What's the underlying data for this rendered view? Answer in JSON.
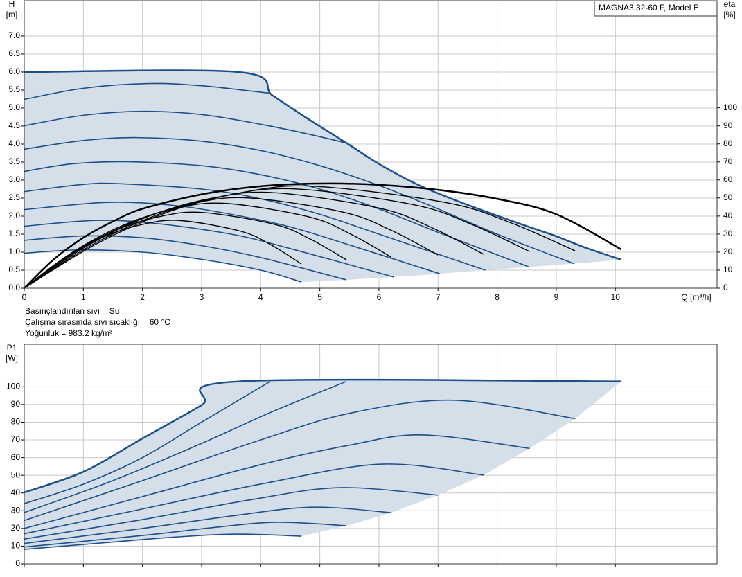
{
  "chart_data": [
    {
      "type": "line",
      "title": "MAGNA3 32-60 F, Model E",
      "y_label": "H",
      "y_unit": "[m]",
      "y2_label": "eta",
      "y2_unit": "[%]",
      "x_label": "Q [m³/h]",
      "notes": [
        "Basınçlandırılan sıvı = Su",
        "Çalışma sırasında sıvı sıcaklığı = 60 °C",
        "Yoğunluk = 983.2 kg/m³"
      ],
      "xlim": [
        0,
        11.72
      ],
      "xticks": [
        0,
        1,
        2,
        3,
        4,
        5,
        6,
        7,
        8,
        9,
        10
      ],
      "ylim": [
        0,
        7.98
      ],
      "yticks": [
        {
          "value": 0,
          "label": "0.0"
        },
        {
          "value": 0.5,
          "label": "0.5"
        },
        {
          "value": 1,
          "label": "1.0"
        },
        {
          "value": 1.5,
          "label": "1.5"
        },
        {
          "value": 2,
          "label": "2.0"
        },
        {
          "value": 2.5,
          "label": "2.5"
        },
        {
          "value": 3,
          "label": "3.0"
        },
        {
          "value": 3.5,
          "label": "3.5"
        },
        {
          "value": 4,
          "label": "4.0"
        },
        {
          "value": 4.5,
          "label": "4.5"
        },
        {
          "value": 5,
          "label": "5.0"
        },
        {
          "value": 5.5,
          "label": "5.5"
        },
        {
          "value": 6,
          "label": "6.0"
        },
        {
          "value": 6.5,
          "label": "6.5"
        },
        {
          "value": 7,
          "label": "7.0"
        }
      ],
      "y2lim": [
        0,
        159.4
      ],
      "y2ticks": [
        0,
        10,
        20,
        30,
        40,
        50,
        60,
        70,
        80,
        90,
        100
      ],
      "show_xtick_labels": true,
      "grid": true,
      "area_color": "#d5dfe9",
      "area_boundary": {
        "x": [
          10.1,
          9.3,
          8.54,
          7.8,
          7.03,
          6.25,
          5.45,
          4.69
        ],
        "values": [
          0.79,
          0.68,
          0.59,
          0.5,
          0.4,
          0.31,
          0.23,
          0.17
        ]
      },
      "series": [
        {
          "color": "#1b4f8a",
          "width": 2.5,
          "x": [
            0,
            3.63,
            4.2,
            4.8,
            5.45,
            6,
            6.62,
            7.2,
            7.8,
            8.4,
            8.97,
            9.5,
            10.1
          ],
          "values": [
            6,
            6,
            5.35,
            4.7,
            4.03,
            3.45,
            2.9,
            2.5,
            2.13,
            1.78,
            1.46,
            1.12,
            0.79
          ]
        },
        {
          "color": "#1b4f8a",
          "width": 1.6,
          "x": [
            0,
            1,
            2.1,
            3,
            4.16
          ],
          "values": [
            5.24,
            5.55,
            5.68,
            5.62,
            5.41
          ]
        },
        {
          "color": "#1b4f8a",
          "width": 1.6,
          "x": [
            0,
            1,
            2,
            3,
            4,
            4.8,
            5.45
          ],
          "values": [
            4.51,
            4.8,
            4.91,
            4.82,
            4.55,
            4.28,
            4.03
          ]
        },
        {
          "color": "#1b4f8a",
          "width": 1.6,
          "x": [
            0,
            1,
            1.9,
            3,
            4,
            5,
            6,
            7,
            8,
            9.3
          ],
          "values": [
            3.86,
            4.1,
            4.18,
            4.08,
            3.82,
            3.4,
            2.85,
            2.2,
            1.5,
            0.68
          ]
        },
        {
          "color": "#1b4f8a",
          "width": 1.6,
          "x": [
            0,
            0.8,
            1.7,
            3,
            4,
            5,
            6,
            7,
            8.54
          ],
          "values": [
            3.24,
            3.45,
            3.51,
            3.4,
            3.15,
            2.75,
            2.2,
            1.55,
            0.59
          ]
        },
        {
          "color": "#1b4f8a",
          "width": 1.6,
          "x": [
            0,
            1,
            1.6,
            3,
            4,
            5,
            6,
            7.8
          ],
          "values": [
            2.68,
            2.88,
            2.9,
            2.75,
            2.48,
            2.05,
            1.5,
            0.5
          ]
        },
        {
          "color": "#1b4f8a",
          "width": 1.6,
          "x": [
            0,
            1.4,
            2.5,
            3.5,
            4.5,
            5.5,
            7.03
          ],
          "values": [
            2.18,
            2.38,
            2.3,
            2.05,
            1.7,
            1.2,
            0.4
          ]
        },
        {
          "color": "#1b4f8a",
          "width": 1.6,
          "x": [
            0,
            1.2,
            2.2,
            3.5,
            4.5,
            6.25
          ],
          "values": [
            1.72,
            1.88,
            1.8,
            1.5,
            1.1,
            0.31
          ]
        },
        {
          "color": "#1b4f8a",
          "width": 1.6,
          "x": [
            0,
            1,
            2,
            3,
            4,
            5.45
          ],
          "values": [
            1.33,
            1.45,
            1.4,
            1.18,
            0.85,
            0.23
          ]
        },
        {
          "color": "#1b4f8a",
          "width": 1.6,
          "x": [
            0,
            0.9,
            2,
            3,
            4,
            4.69
          ],
          "values": [
            0.97,
            1.06,
            1,
            0.8,
            0.5,
            0.17
          ]
        },
        {
          "axis": "y2",
          "color": "#000000",
          "width": 2.5,
          "x": [
            0,
            0.5,
            1,
            1.5,
            2,
            3,
            4,
            5,
            6,
            7,
            8,
            9,
            10.1
          ],
          "values": [
            0,
            16,
            28,
            37,
            44,
            52,
            56.5,
            58,
            57.3,
            54.5,
            49.5,
            41,
            21.5
          ]
        },
        {
          "axis": "y2",
          "color": "#000000",
          "width": 1.4,
          "x": [
            0,
            1.23,
            2.45,
            3.68,
            4.9,
            7.11,
            8.22,
            9.32
          ],
          "values": [
            0,
            24.7,
            42.4,
            53,
            56.5,
            47.6,
            36.4,
            20.7
          ]
        },
        {
          "axis": "y2",
          "color": "#000000",
          "width": 1.4,
          "x": [
            0,
            1.15,
            2.3,
            3.45,
            4.6,
            6.58,
            7.56,
            8.55
          ],
          "values": [
            0,
            24.1,
            41.3,
            51.6,
            55,
            46.3,
            35.5,
            20.3
          ]
        },
        {
          "axis": "y2",
          "color": "#000000",
          "width": 1.4,
          "x": [
            0,
            1.05,
            2.1,
            3.15,
            4.2,
            5.99,
            6.88,
            7.77
          ],
          "values": [
            0,
            23.2,
            39.8,
            49.7,
            53,
            44.5,
            33.8,
            18.8
          ]
        },
        {
          "axis": "y2",
          "color": "#000000",
          "width": 1.4,
          "x": [
            0,
            0.95,
            1.9,
            2.85,
            3.8,
            5.4,
            6.2,
            7
          ],
          "values": [
            0,
            21.9,
            37.5,
            46.9,
            50,
            42.1,
            32.2,
            18.4
          ]
        },
        {
          "axis": "y2",
          "color": "#000000",
          "width": 1.4,
          "x": [
            0,
            0.85,
            1.7,
            2.55,
            3.4,
            4.81,
            5.51,
            6.21
          ],
          "values": [
            0,
            20.6,
            35.3,
            44.1,
            47,
            39.6,
            30.2,
            17.2
          ]
        },
        {
          "axis": "y2",
          "color": "#000000",
          "width": 1.4,
          "x": [
            0,
            0.75,
            1.5,
            2.25,
            3,
            4.23,
            4.84,
            5.45
          ],
          "values": [
            0,
            18.4,
            31.5,
            39.4,
            42,
            35.4,
            27.2,
            15.7
          ]
        },
        {
          "axis": "y2",
          "color": "#000000",
          "width": 1.4,
          "x": [
            0,
            0.66,
            1.32,
            1.98,
            2.64,
            3.67,
            4.18,
            4.69
          ],
          "values": [
            0,
            16.4,
            28.1,
            35.2,
            37.5,
            31.5,
            23.9,
            13.4
          ]
        }
      ]
    },
    {
      "type": "line",
      "y_label": "P1",
      "y_unit": "[W]",
      "xlim": [
        0,
        11.72
      ],
      "xticks": [
        0,
        1,
        2,
        3,
        4,
        5,
        6,
        7,
        8,
        9,
        10
      ],
      "ylim": [
        0,
        124
      ],
      "yticks": [
        0,
        10,
        20,
        30,
        40,
        50,
        60,
        70,
        80,
        90,
        100
      ],
      "show_xtick_labels": false,
      "grid": true,
      "area_color": "#d5dfe9",
      "area_boundary": {
        "x": [
          10.1,
          9.32,
          8.55,
          7.77,
          7,
          6.21,
          5.45,
          4.69
        ],
        "values": [
          103,
          82,
          65.2,
          50.1,
          38.8,
          28.9,
          21.5,
          15.6
        ]
      },
      "series": [
        {
          "color": "#1b4f8a",
          "width": 2.5,
          "x": [
            0,
            1,
            2,
            3,
            3.63,
            10.1
          ],
          "values": [
            40.3,
            52,
            70.8,
            89.6,
            103,
            103
          ]
        },
        {
          "color": "#1b4f8a",
          "width": 1.6,
          "x": [
            0,
            1,
            2,
            3,
            4.16
          ],
          "values": [
            34,
            45,
            60,
            80,
            103
          ]
        },
        {
          "color": "#1b4f8a",
          "width": 1.6,
          "x": [
            0,
            1.5,
            3,
            4.2,
            5.45
          ],
          "values": [
            29,
            47,
            68,
            86,
            103
          ]
        },
        {
          "color": "#1b4f8a",
          "width": 1.6,
          "x": [
            0,
            2,
            4,
            5.5,
            7.27,
            9.32
          ],
          "values": [
            24.5,
            47,
            70,
            85,
            92.4,
            82
          ]
        },
        {
          "color": "#1b4f8a",
          "width": 1.6,
          "x": [
            0,
            2,
            4,
            5.5,
            6.74,
            8.55
          ],
          "values": [
            20,
            38,
            56,
            67,
            72.8,
            65.2
          ]
        },
        {
          "color": "#1b4f8a",
          "width": 1.6,
          "x": [
            0,
            2,
            4,
            6.04,
            7.77
          ],
          "values": [
            17,
            31,
            45,
            56.3,
            50.1
          ]
        },
        {
          "color": "#1b4f8a",
          "width": 1.6,
          "x": [
            0,
            2,
            3.8,
            5.33,
            7
          ],
          "values": [
            14,
            25,
            36,
            43,
            38.8
          ]
        },
        {
          "color": "#1b4f8a",
          "width": 1.6,
          "x": [
            0,
            2,
            3.5,
            4.87,
            6.21
          ],
          "values": [
            11.5,
            20,
            27,
            32,
            28.9
          ]
        },
        {
          "color": "#1b4f8a",
          "width": 1.6,
          "x": [
            0,
            2,
            3.2,
            4.28,
            5.45
          ],
          "values": [
            9.5,
            16,
            20.5,
            23.5,
            21.5
          ]
        },
        {
          "color": "#1b4f8a",
          "width": 1.6,
          "x": [
            0,
            1.5,
            2.5,
            3.58,
            4.69
          ],
          "values": [
            8.2,
            12.3,
            15,
            16.8,
            15.6
          ]
        }
      ]
    }
  ]
}
